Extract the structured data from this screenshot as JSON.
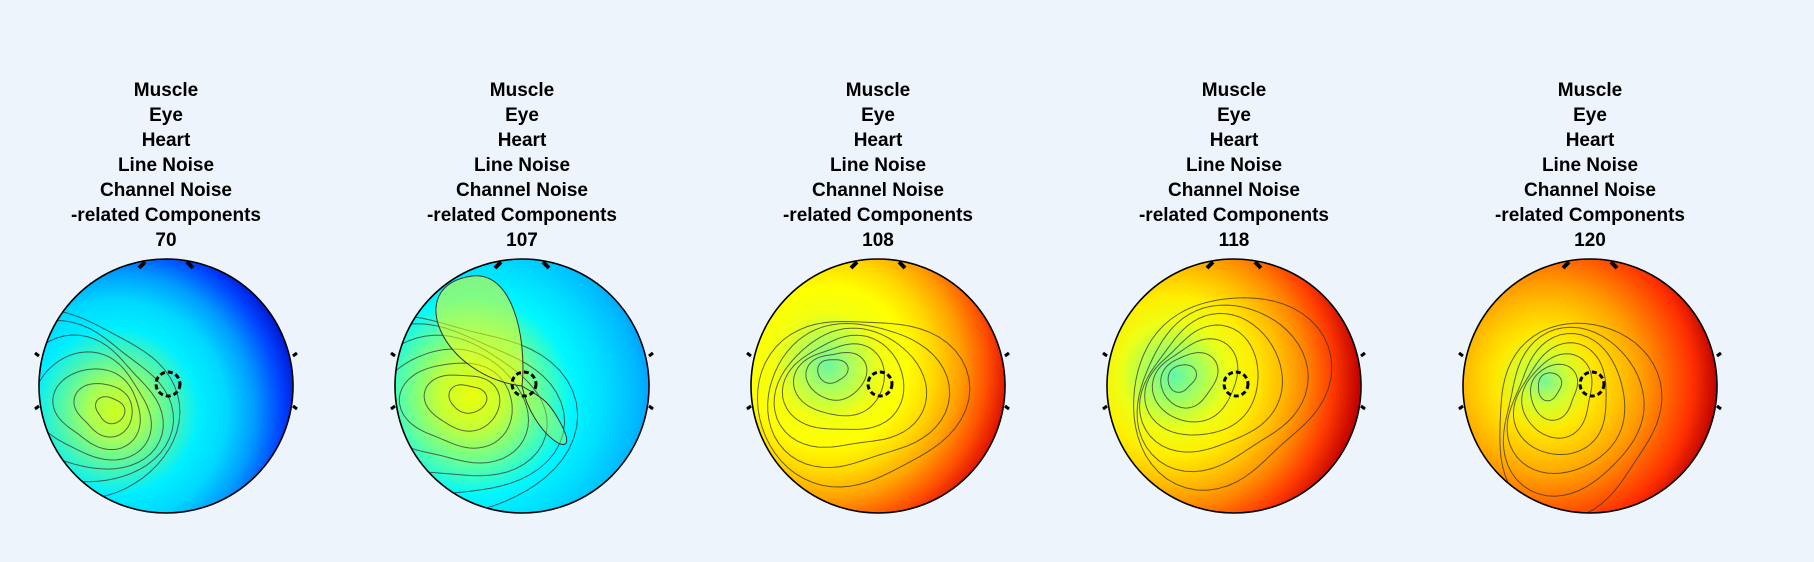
{
  "figure": {
    "background": "#eef4fc",
    "title_lines": [
      "Muscle",
      "Eye",
      "Heart",
      "Line Noise",
      "Channel Noise",
      "-related Components"
    ]
  },
  "chart_data": [
    {
      "type": "heatmap",
      "plot": "scalp topography",
      "component": "70",
      "title": [
        "Muscle",
        "Eye",
        "Heart",
        "Line Noise",
        "Channel Noise",
        "-related Components",
        "70"
      ],
      "colormap": "jet",
      "palette": [
        "#7a0a22",
        "#ff0000",
        "#ff9d00",
        "#ffff00",
        "#62f5a0",
        "#00fbff",
        "#0096ff",
        "#0000d8"
      ],
      "fill_stops": [
        "#ccff20",
        "#a8ff55",
        "#50f6ab",
        "#00efff",
        "#00d8ff",
        "#009cff",
        "#0042ff",
        "#0000b8"
      ]
    },
    {
      "type": "heatmap",
      "plot": "scalp topography",
      "component": "107",
      "title": [
        "Muscle",
        "Eye",
        "Heart",
        "Line Noise",
        "Channel Noise",
        "-related Components",
        "107"
      ],
      "colormap": "jet",
      "fill_stops": [
        "#eaff0a",
        "#c4ff36",
        "#66ff98",
        "#00f8ff",
        "#00dcff",
        "#00b8ff",
        "#007cff",
        "#0046ff"
      ]
    },
    {
      "type": "heatmap",
      "plot": "scalp topography",
      "component": "108",
      "title": [
        "Muscle",
        "Eye",
        "Heart",
        "Line Noise",
        "Channel Noise",
        "-related Components",
        "108"
      ],
      "colormap": "jet",
      "fill_stops": [
        "#6ef7a0",
        "#b2ff56",
        "#f2ff12",
        "#ffff00",
        "#ffd800",
        "#ff9f00",
        "#ff5000",
        "#d60000"
      ]
    },
    {
      "type": "heatmap",
      "plot": "scalp topography",
      "component": "118",
      "title": [
        "Muscle",
        "Eye",
        "Heart",
        "Line Noise",
        "Channel Noise",
        "-related Components",
        "118"
      ],
      "colormap": "jet",
      "fill_stops": [
        "#5ef8a8",
        "#a4ff5e",
        "#ecff16",
        "#ffee00",
        "#ffbf00",
        "#ff8500",
        "#ff3a00",
        "#c00000"
      ]
    },
    {
      "type": "heatmap",
      "plot": "scalp topography",
      "component": "120",
      "title": [
        "Muscle",
        "Eye",
        "Heart",
        "Line Noise",
        "Channel Noise",
        "-related Components",
        "120"
      ],
      "colormap": "jet",
      "fill_stops": [
        "#78f79a",
        "#d2ff2e",
        "#ffe800",
        "#ffc400",
        "#ff9a00",
        "#ff6400",
        "#ff2e00",
        "#b80000"
      ]
    }
  ]
}
